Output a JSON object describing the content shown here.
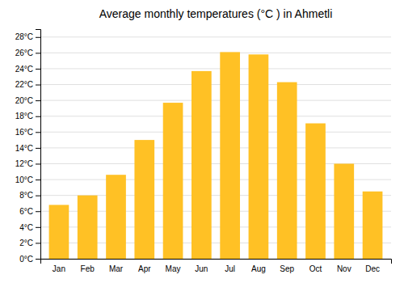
{
  "chart_data": {
    "type": "bar",
    "title": "Average monthly temperatures (°C ) in Ahmetli",
    "categories": [
      "Jan",
      "Feb",
      "Mar",
      "Apr",
      "May",
      "Jun",
      "Jul",
      "Aug",
      "Sep",
      "Oct",
      "Nov",
      "Dec"
    ],
    "values": [
      6.8,
      8.0,
      10.6,
      15.0,
      19.7,
      23.7,
      26.1,
      25.8,
      22.3,
      17.1,
      12.0,
      8.5
    ],
    "color": "#FFC125",
    "ylim": [
      0,
      29
    ],
    "yticks": [
      {
        "value": 0,
        "label": "0°C"
      },
      {
        "value": 2,
        "label": "2°C"
      },
      {
        "value": 4,
        "label": "4°C"
      },
      {
        "value": 6,
        "label": "6°C"
      },
      {
        "value": 8,
        "label": "8°C"
      },
      {
        "value": 10,
        "label": "10°C"
      },
      {
        "value": 12,
        "label": "12°C"
      },
      {
        "value": 14,
        "label": "14°C"
      },
      {
        "value": 16,
        "label": "16°C"
      },
      {
        "value": 18,
        "label": "18°C"
      },
      {
        "value": 20,
        "label": "20°C"
      },
      {
        "value": 22,
        "label": "22°C"
      },
      {
        "value": 24,
        "label": "24°C"
      },
      {
        "value": 26,
        "label": "26°C"
      },
      {
        "value": 28,
        "label": "28°C"
      }
    ],
    "grid": true
  }
}
